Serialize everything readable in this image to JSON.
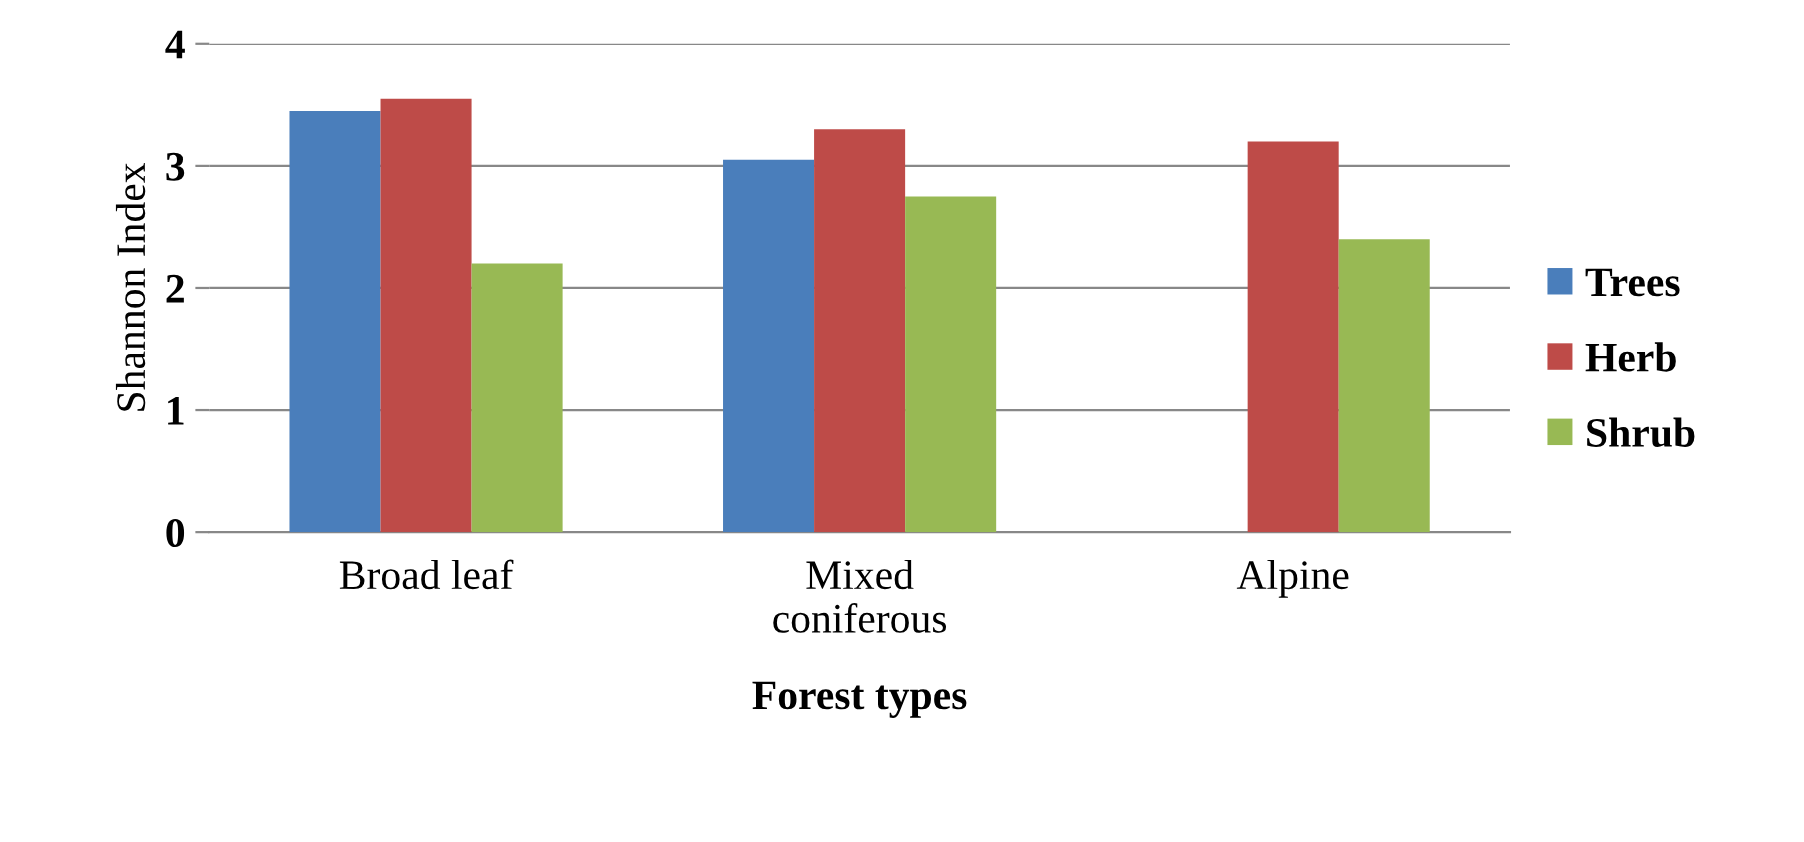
{
  "chart_data": {
    "type": "bar",
    "xlabel": "Forest types",
    "ylabel": "Shannon Index",
    "categories": [
      "Broad leaf",
      "Mixed\nconiferous",
      "Alpine"
    ],
    "series": [
      {
        "name": "Trees",
        "color": "#4a7ebb",
        "values": [
          3.45,
          3.05,
          null
        ]
      },
      {
        "name": "Herb",
        "color": "#be4b48",
        "values": [
          3.55,
          3.3,
          3.2
        ]
      },
      {
        "name": "Shrub",
        "color": "#98b954",
        "values": [
          2.2,
          2.75,
          2.4
        ]
      }
    ],
    "ylim": [
      0,
      4
    ],
    "yticks": [
      0,
      1,
      2,
      3,
      4
    ],
    "grid": "y",
    "legend": "right"
  }
}
